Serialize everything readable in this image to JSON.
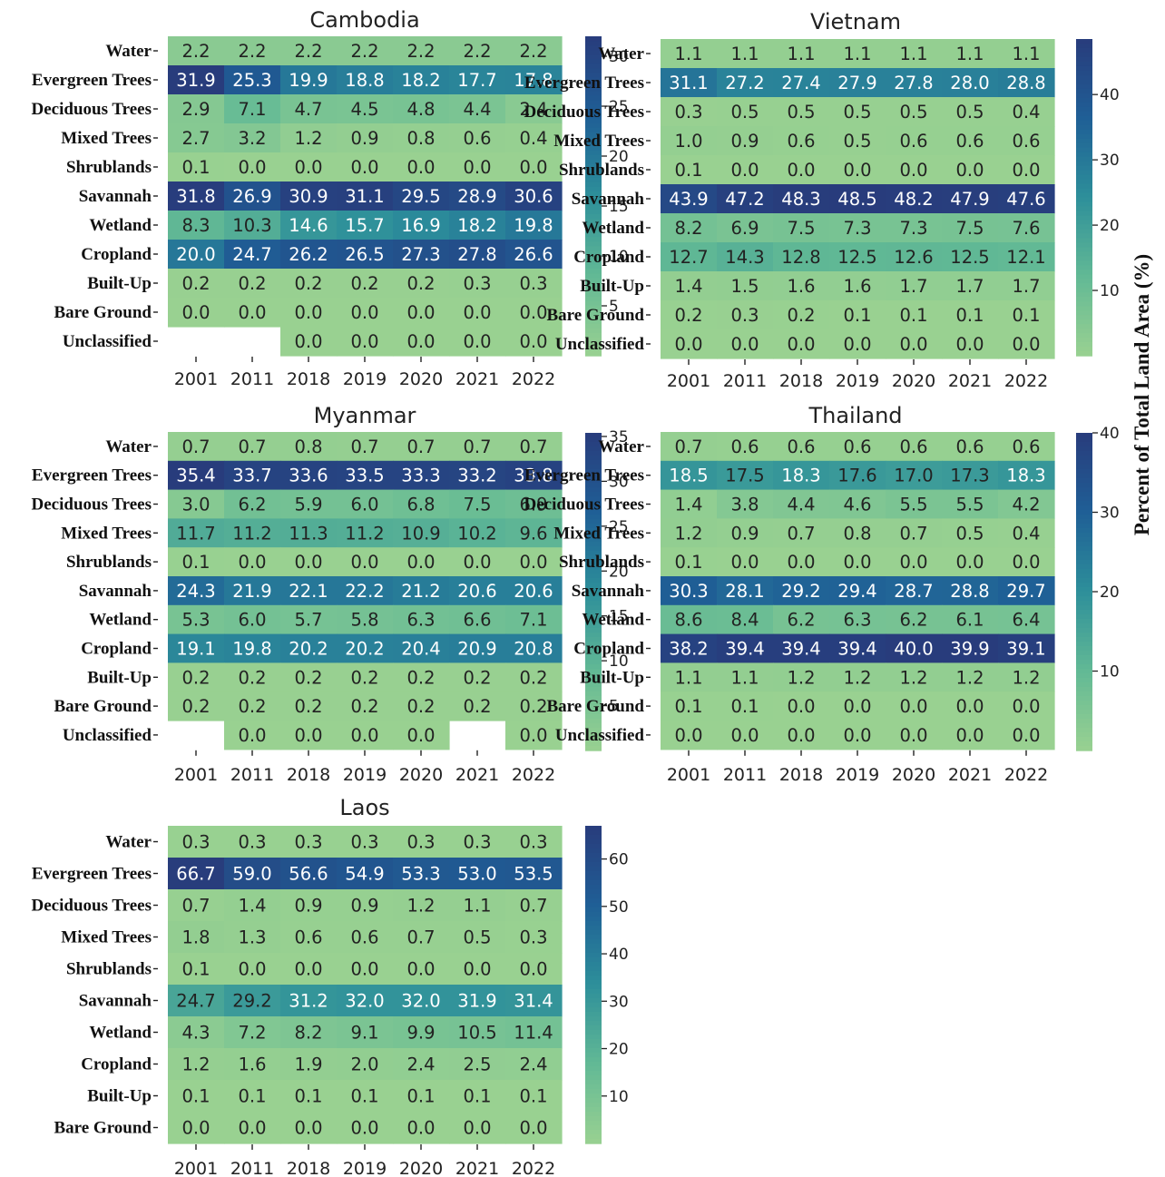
{
  "colorbar_label": "Percent of Total Land Area (%)",
  "chart_data": [
    {
      "type": "heatmap",
      "title": "Cambodia",
      "rows": [
        "Water",
        "Evergreen Trees",
        "Deciduous Trees",
        "Mixed Trees",
        "Shrublands",
        "Savannah",
        "Wetland",
        "Cropland",
        "Built-Up",
        "Bare Ground",
        "Unclassified"
      ],
      "columns": [
        "2001",
        "2011",
        "2018",
        "2019",
        "2020",
        "2021",
        "2022"
      ],
      "values": [
        [
          2.2,
          2.2,
          2.2,
          2.2,
          2.2,
          2.2,
          2.2
        ],
        [
          31.9,
          25.3,
          19.9,
          18.8,
          18.2,
          17.7,
          17.8
        ],
        [
          2.9,
          7.1,
          4.7,
          4.5,
          4.8,
          4.4,
          2.4
        ],
        [
          2.7,
          3.2,
          1.2,
          0.9,
          0.8,
          0.6,
          0.4
        ],
        [
          0.1,
          0.0,
          0.0,
          0.0,
          0.0,
          0.0,
          0.0
        ],
        [
          31.8,
          26.9,
          30.9,
          31.1,
          29.5,
          28.9,
          30.6
        ],
        [
          8.3,
          10.3,
          14.6,
          15.7,
          16.9,
          18.2,
          19.8
        ],
        [
          20.0,
          24.7,
          26.2,
          26.5,
          27.3,
          27.8,
          26.6
        ],
        [
          0.2,
          0.2,
          0.2,
          0.2,
          0.2,
          0.3,
          0.3
        ],
        [
          0.0,
          0.0,
          0.0,
          0.0,
          0.0,
          0.0,
          0.0
        ],
        [
          null,
          null,
          0.0,
          0.0,
          0.0,
          0.0,
          0.0
        ]
      ],
      "colorbar_range": [
        0,
        32
      ],
      "colorbar_ticks": [
        5,
        10,
        15,
        20,
        25,
        30
      ]
    },
    {
      "type": "heatmap",
      "title": "Vietnam",
      "rows": [
        "Water",
        "Evergreen Trees",
        "Deciduous Trees",
        "Mixed Trees",
        "Shrublands",
        "Savannah",
        "Wetland",
        "Cropland",
        "Built-Up",
        "Bare Ground",
        "Unclassified"
      ],
      "columns": [
        "2001",
        "2011",
        "2018",
        "2019",
        "2020",
        "2021",
        "2022"
      ],
      "values": [
        [
          1.1,
          1.1,
          1.1,
          1.1,
          1.1,
          1.1,
          1.1
        ],
        [
          31.1,
          27.2,
          27.4,
          27.9,
          27.8,
          28.0,
          28.8
        ],
        [
          0.3,
          0.5,
          0.5,
          0.5,
          0.5,
          0.5,
          0.4
        ],
        [
          1.0,
          0.9,
          0.6,
          0.5,
          0.6,
          0.6,
          0.6
        ],
        [
          0.1,
          0.0,
          0.0,
          0.0,
          0.0,
          0.0,
          0.0
        ],
        [
          43.9,
          47.2,
          48.3,
          48.5,
          48.2,
          47.9,
          47.6
        ],
        [
          8.2,
          6.9,
          7.5,
          7.3,
          7.3,
          7.5,
          7.6
        ],
        [
          12.7,
          14.3,
          12.8,
          12.5,
          12.6,
          12.5,
          12.1
        ],
        [
          1.4,
          1.5,
          1.6,
          1.6,
          1.7,
          1.7,
          1.7
        ],
        [
          0.2,
          0.3,
          0.2,
          0.1,
          0.1,
          0.1,
          0.1
        ],
        [
          0.0,
          0.0,
          0.0,
          0.0,
          0.0,
          0.0,
          0.0
        ]
      ],
      "colorbar_range": [
        0,
        48.5
      ],
      "colorbar_ticks": [
        10,
        20,
        30,
        40
      ]
    },
    {
      "type": "heatmap",
      "title": "Myanmar",
      "rows": [
        "Water",
        "Evergreen Trees",
        "Deciduous Trees",
        "Mixed Trees",
        "Shrublands",
        "Savannah",
        "Wetland",
        "Cropland",
        "Built-Up",
        "Bare Ground",
        "Unclassified"
      ],
      "columns": [
        "2001",
        "2011",
        "2018",
        "2019",
        "2020",
        "2021",
        "2022"
      ],
      "values": [
        [
          0.7,
          0.7,
          0.8,
          0.7,
          0.7,
          0.7,
          0.7
        ],
        [
          35.4,
          33.7,
          33.6,
          33.5,
          33.3,
          33.2,
          33.8
        ],
        [
          3.0,
          6.2,
          5.9,
          6.0,
          6.8,
          7.5,
          6.9
        ],
        [
          11.7,
          11.2,
          11.3,
          11.2,
          10.9,
          10.2,
          9.6
        ],
        [
          0.1,
          0.0,
          0.0,
          0.0,
          0.0,
          0.0,
          0.0
        ],
        [
          24.3,
          21.9,
          22.1,
          22.2,
          21.2,
          20.6,
          20.6
        ],
        [
          5.3,
          6.0,
          5.7,
          5.8,
          6.3,
          6.6,
          7.1
        ],
        [
          19.1,
          19.8,
          20.2,
          20.2,
          20.4,
          20.9,
          20.8
        ],
        [
          0.2,
          0.2,
          0.2,
          0.2,
          0.2,
          0.2,
          0.2
        ],
        [
          0.2,
          0.2,
          0.2,
          0.2,
          0.2,
          0.2,
          0.2
        ],
        [
          null,
          0.0,
          0.0,
          0.0,
          0.0,
          null,
          0.0
        ]
      ],
      "colorbar_range": [
        0,
        35.4
      ],
      "colorbar_ticks": [
        5,
        10,
        15,
        20,
        25,
        30,
        35
      ]
    },
    {
      "type": "heatmap",
      "title": "Thailand",
      "rows": [
        "Water",
        "Evergreen Trees",
        "Deciduous Trees",
        "Mixed Trees",
        "Shrublands",
        "Savannah",
        "Wetland",
        "Cropland",
        "Built-Up",
        "Bare Ground",
        "Unclassified"
      ],
      "columns": [
        "2001",
        "2011",
        "2018",
        "2019",
        "2020",
        "2021",
        "2022"
      ],
      "values": [
        [
          0.7,
          0.6,
          0.6,
          0.6,
          0.6,
          0.6,
          0.6
        ],
        [
          18.5,
          17.5,
          18.3,
          17.6,
          17.0,
          17.3,
          18.3
        ],
        [
          1.4,
          3.8,
          4.4,
          4.6,
          5.5,
          5.5,
          4.2
        ],
        [
          1.2,
          0.9,
          0.7,
          0.8,
          0.7,
          0.5,
          0.4
        ],
        [
          0.1,
          0.0,
          0.0,
          0.0,
          0.0,
          0.0,
          0.0
        ],
        [
          30.3,
          28.1,
          29.2,
          29.4,
          28.7,
          28.8,
          29.7
        ],
        [
          8.6,
          8.4,
          6.2,
          6.3,
          6.2,
          6.1,
          6.4
        ],
        [
          38.2,
          39.4,
          39.4,
          39.4,
          40.0,
          39.9,
          39.1
        ],
        [
          1.1,
          1.1,
          1.2,
          1.2,
          1.2,
          1.2,
          1.2
        ],
        [
          0.1,
          0.1,
          0.0,
          0.0,
          0.0,
          0.0,
          0.0
        ],
        [
          0.0,
          0.0,
          0.0,
          0.0,
          0.0,
          0.0,
          0.0
        ]
      ],
      "colorbar_range": [
        0,
        40
      ],
      "colorbar_ticks": [
        10,
        20,
        30,
        40
      ]
    },
    {
      "type": "heatmap",
      "title": "Laos",
      "rows": [
        "Water",
        "Evergreen Trees",
        "Deciduous Trees",
        "Mixed Trees",
        "Shrublands",
        "Savannah",
        "Wetland",
        "Cropland",
        "Built-Up",
        "Bare Ground"
      ],
      "columns": [
        "2001",
        "2011",
        "2018",
        "2019",
        "2020",
        "2021",
        "2022"
      ],
      "values": [
        [
          0.3,
          0.3,
          0.3,
          0.3,
          0.3,
          0.3,
          0.3
        ],
        [
          66.7,
          59.0,
          56.6,
          54.9,
          53.3,
          53.0,
          53.5
        ],
        [
          0.7,
          1.4,
          0.9,
          0.9,
          1.2,
          1.1,
          0.7
        ],
        [
          1.8,
          1.3,
          0.6,
          0.6,
          0.7,
          0.5,
          0.3
        ],
        [
          0.1,
          0.0,
          0.0,
          0.0,
          0.0,
          0.0,
          0.0
        ],
        [
          24.7,
          29.2,
          31.2,
          32.0,
          32.0,
          31.9,
          31.4
        ],
        [
          4.3,
          7.2,
          8.2,
          9.1,
          9.9,
          10.5,
          11.4
        ],
        [
          1.2,
          1.6,
          1.9,
          2.0,
          2.4,
          2.5,
          2.4
        ],
        [
          0.1,
          0.1,
          0.1,
          0.1,
          0.1,
          0.1,
          0.1
        ],
        [
          0.0,
          0.0,
          0.0,
          0.0,
          0.0,
          0.0,
          0.0
        ]
      ],
      "colorbar_range": [
        0,
        67
      ],
      "colorbar_ticks": [
        10,
        20,
        30,
        40,
        50,
        60
      ]
    }
  ]
}
